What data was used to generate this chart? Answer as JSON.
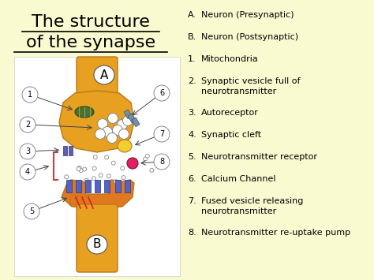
{
  "background_color": "#FAFAD0",
  "title_line1": "The structure",
  "title_line2": "of the synapse",
  "title_fontsize": 16,
  "title_color": "#000000",
  "legend_items": [
    {
      "label": "A.",
      "text": "Neuron (Presynaptic)"
    },
    {
      "label": "B.",
      "text": "Neuron (Postsynaptic)"
    },
    {
      "label": "1.",
      "text": "Mitochondria"
    },
    {
      "label": "2.",
      "text": "Synaptic vesicle full of\nneurotransmitter"
    },
    {
      "label": "3.",
      "text": "Autoreceptor"
    },
    {
      "label": "4.",
      "text": "Synaptic cleft"
    },
    {
      "label": "5.",
      "text": "Neurotransmitter receptor"
    },
    {
      "label": "6.",
      "text": "Calcium Channel"
    },
    {
      "label": "7.",
      "text": "Fused vesicle releasing\nneurotransmitter"
    },
    {
      "label": "8.",
      "text": "Neurotransmitter re-uptake pump"
    }
  ],
  "legend_fontsize": 8.0,
  "neuron_gold": "#E8A020",
  "neuron_edge": "#B87818",
  "neuron_orange": "#E07820",
  "mito_color": "#507030",
  "vesicle_fill": "#FFFFFF",
  "vesicle_edge": "#888888",
  "receptor_color": "#5050AA",
  "pink_dot": "#E02060",
  "cleft_dot_edge": "#888888",
  "diagram_bg": "#FFFFFF",
  "circle_label_color": "#888888"
}
